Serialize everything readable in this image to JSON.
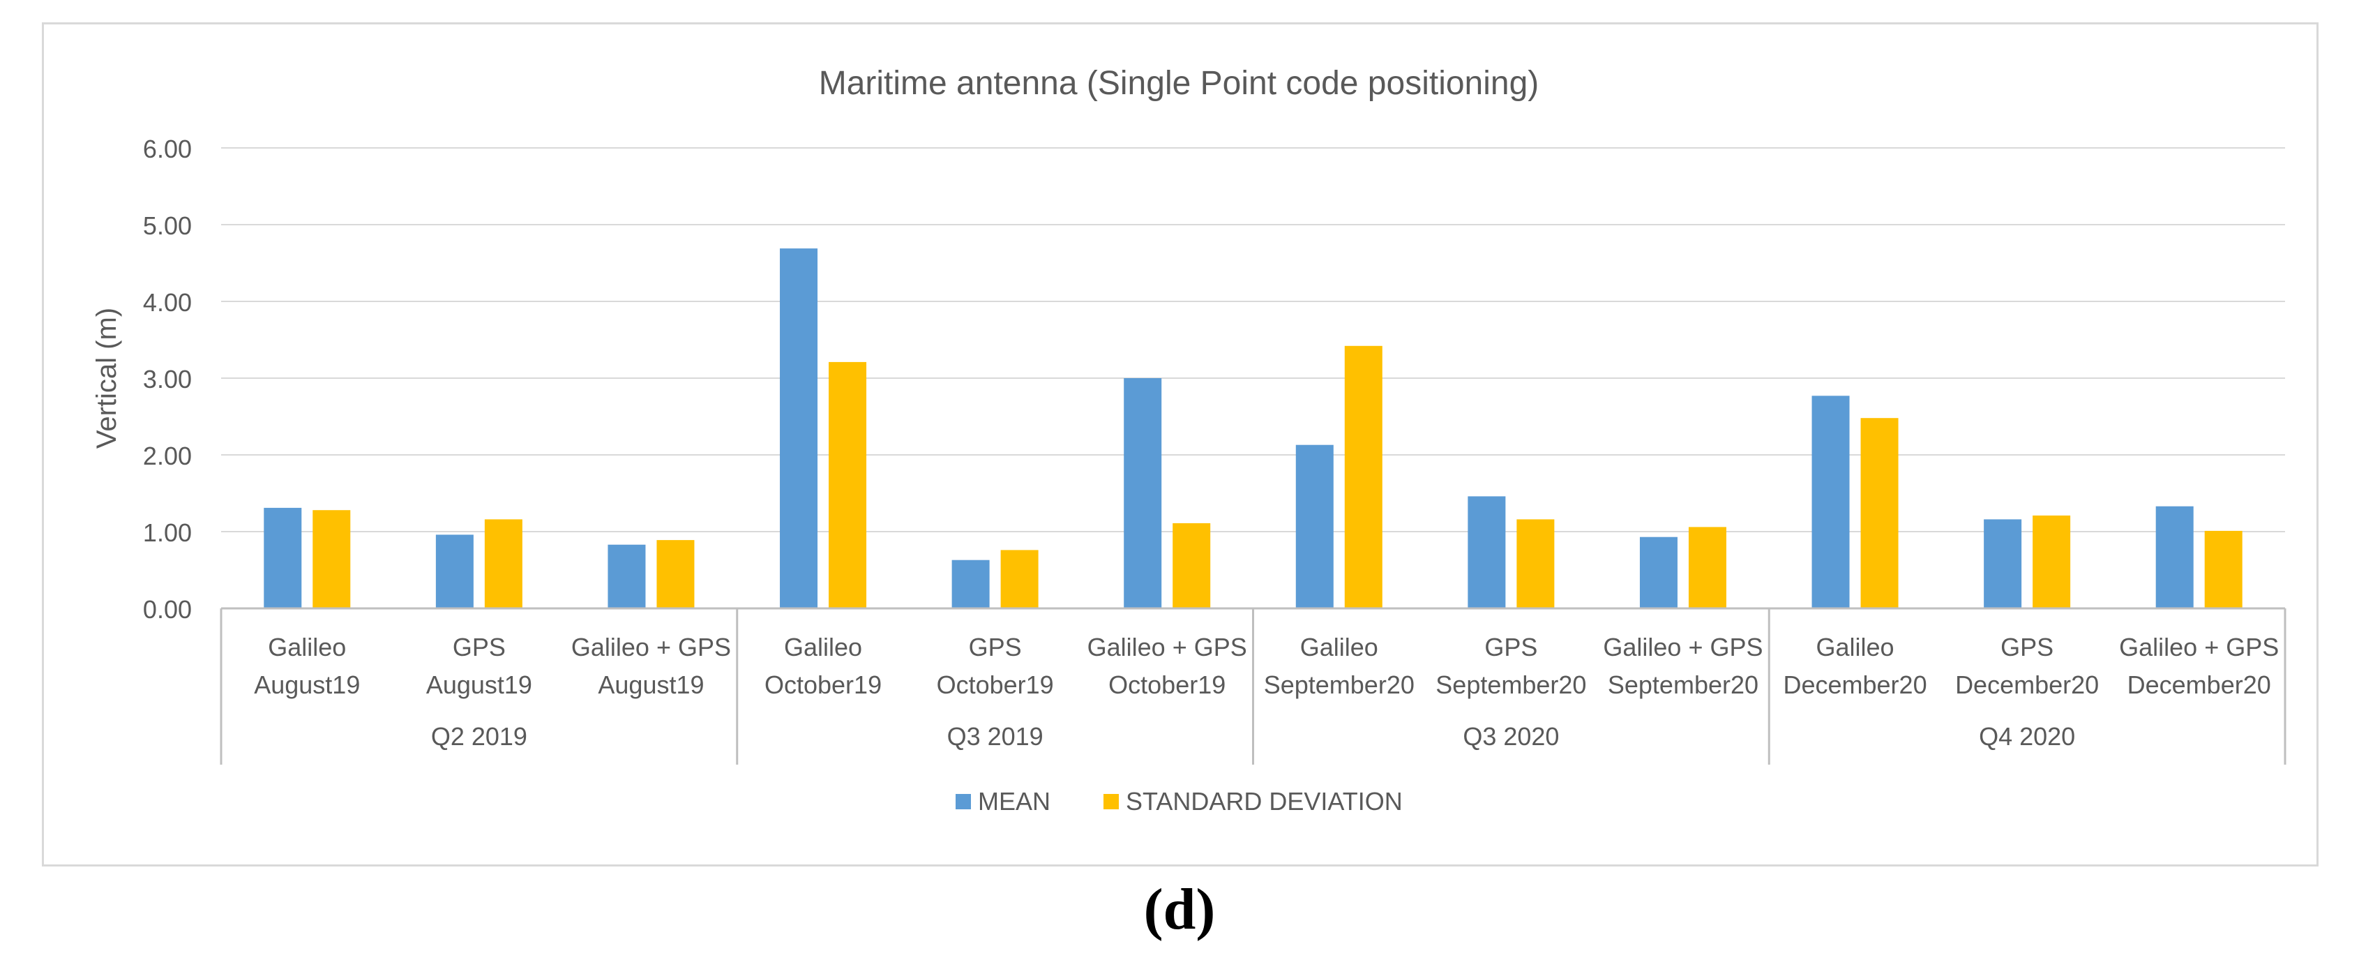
{
  "panel_label": "(d)",
  "chart_data": {
    "type": "bar",
    "title": "Maritime antenna (Single Point code positioning)",
    "xlabel": "",
    "ylabel": "Vertical (m)",
    "ylim": [
      0,
      6
    ],
    "yticks": [
      "0.00",
      "1.00",
      "2.00",
      "3.00",
      "4.00",
      "5.00",
      "6.00"
    ],
    "grid": true,
    "legend_position": "bottom",
    "categories": [
      {
        "system": "Galileo",
        "period": "August19",
        "quarter": "Q2 2019"
      },
      {
        "system": "GPS",
        "period": "August19",
        "quarter": "Q2 2019"
      },
      {
        "system": "Galileo + GPS",
        "period": "August19",
        "quarter": "Q2 2019"
      },
      {
        "system": "Galileo",
        "period": "October19",
        "quarter": "Q3 2019"
      },
      {
        "system": "GPS",
        "period": "October19",
        "quarter": "Q3 2019"
      },
      {
        "system": "Galileo + GPS",
        "period": "October19",
        "quarter": "Q3 2019"
      },
      {
        "system": "Galileo",
        "period": "September20",
        "quarter": "Q3 2020"
      },
      {
        "system": "GPS",
        "period": "September20",
        "quarter": "Q3 2020"
      },
      {
        "system": "Galileo + GPS",
        "period": "September20",
        "quarter": "Q3 2020"
      },
      {
        "system": "Galileo",
        "period": "December20",
        "quarter": "Q4 2020"
      },
      {
        "system": "GPS",
        "period": "December20",
        "quarter": "Q4 2020"
      },
      {
        "system": "Galileo + GPS",
        "period": "December20",
        "quarter": "Q4 2020"
      }
    ],
    "quarters": [
      "Q2 2019",
      "Q3 2019",
      "Q3 2020",
      "Q4 2020"
    ],
    "series": [
      {
        "name": "MEAN",
        "color": "#5b9bd5",
        "values": [
          1.31,
          0.96,
          0.83,
          4.69,
          0.63,
          3.0,
          2.13,
          1.46,
          0.93,
          2.77,
          1.16,
          1.33
        ]
      },
      {
        "name": "STANDARD DEVIATION",
        "color": "#ffc000",
        "values": [
          1.28,
          1.16,
          0.89,
          3.21,
          0.76,
          1.11,
          3.42,
          1.16,
          1.06,
          2.48,
          1.21,
          1.01
        ]
      }
    ]
  }
}
